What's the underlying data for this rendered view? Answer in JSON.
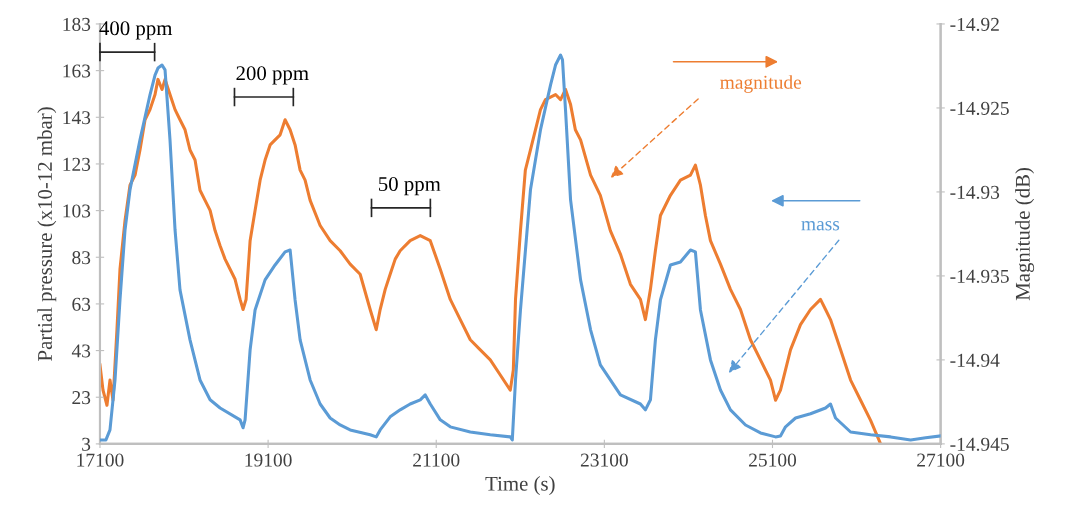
{
  "chart_data": {
    "type": "line",
    "xlabel": "Time (s)",
    "ylabel": "Partial pressure (x10-12 mbar)",
    "y2label": "Magnitude (dB)",
    "xlim": [
      17100,
      27100
    ],
    "xticks": [
      17100,
      19100,
      21100,
      23100,
      25100,
      27100
    ],
    "ylim": [
      3,
      183
    ],
    "yticks": [
      3,
      23,
      43,
      63,
      83,
      103,
      123,
      143,
      163,
      183
    ],
    "y2lim": [
      -14.945,
      -14.92
    ],
    "y2ticks": [
      -14.945,
      -14.94,
      -14.935,
      -14.93,
      -14.925,
      -14.92
    ],
    "grid": false,
    "legend": "top right",
    "marker": "none",
    "line_style": "solid",
    "series": [
      {
        "name": "mass",
        "color": "#5b9bd5",
        "x": [
          17100,
          17171,
          17219,
          17279,
          17338,
          17398,
          17457,
          17576,
          17695,
          17755,
          17790,
          17838,
          17874,
          17933,
          17993,
          18052,
          18171,
          18290,
          18410,
          18529,
          18767,
          18802,
          18826,
          18886,
          18945,
          19064,
          19183,
          19302,
          19362,
          19421,
          19481,
          19600,
          19719,
          19838,
          19957,
          20076,
          20314,
          20386,
          20433,
          20552,
          20671,
          20790,
          20910,
          20969,
          21029,
          21148,
          21267,
          21505,
          21743,
          21981,
          22005,
          22043,
          22102,
          22221,
          22340,
          22460,
          22519,
          22579,
          22602,
          22638,
          22698,
          22817,
          22936,
          23052,
          23291,
          23529,
          23588,
          23648,
          23707,
          23767,
          23886,
          24005,
          24124,
          24183,
          24243,
          24362,
          24481,
          24600,
          24779,
          24957,
          25136,
          25195,
          25255,
          25374,
          25552,
          25731,
          25790,
          25850,
          26029,
          26267,
          26505,
          26743,
          26922,
          27100
        ],
        "values": [
          4.7,
          4.7,
          9,
          30.4,
          64.7,
          94.7,
          111.9,
          133.3,
          152.6,
          161.1,
          164.1,
          165.4,
          163.3,
          133.3,
          94.7,
          69,
          47.6,
          30.4,
          21.9,
          18.4,
          13.3,
          9.9,
          13.3,
          43.3,
          60.4,
          73.3,
          79.7,
          85.3,
          86.1,
          64.7,
          47.6,
          30.4,
          20.1,
          14.1,
          11.1,
          9,
          6.9,
          6,
          9,
          14.6,
          17.6,
          20.1,
          21.9,
          24,
          20.1,
          13.3,
          10.3,
          8.1,
          6.9,
          6,
          4.7,
          30.4,
          60.4,
          111.9,
          137.6,
          156.9,
          165.4,
          169.7,
          167.6,
          146.1,
          107.6,
          73.3,
          51.9,
          36.9,
          24,
          20.1,
          17.6,
          21.9,
          47.6,
          64.7,
          79.7,
          81,
          86.1,
          85.3,
          60.4,
          39,
          26.1,
          17.6,
          11.1,
          7.7,
          6,
          6.4,
          10.3,
          14.1,
          15.9,
          18.4,
          20.1,
          14.1,
          8.1,
          6.9,
          6,
          4.7,
          5.6,
          6.4
        ]
      },
      {
        "name": "magnitude",
        "color": "#ed7d31",
        "axis": "y2",
        "x": [
          17100,
          17136,
          17183,
          17219,
          17255,
          17302,
          17338,
          17398,
          17457,
          17517,
          17576,
          17636,
          17695,
          17755,
          17790,
          17838,
          17874,
          17933,
          17993,
          18052,
          18112,
          18171,
          18231,
          18290,
          18350,
          18410,
          18469,
          18529,
          18588,
          18648,
          18707,
          18767,
          18802,
          18838,
          18886,
          18945,
          19005,
          19064,
          19124,
          19183,
          19243,
          19302,
          19362,
          19421,
          19481,
          19540,
          19600,
          19719,
          19838,
          19957,
          20076,
          20195,
          20314,
          20386,
          20433,
          20493,
          20552,
          20612,
          20671,
          20790,
          20910,
          21029,
          21148,
          21267,
          21386,
          21505,
          21624,
          21743,
          21862,
          21981,
          22017,
          22043,
          22102,
          22160,
          22221,
          22340,
          22400,
          22519,
          22579,
          22638,
          22698,
          22755,
          22817,
          22936,
          23052,
          23171,
          23291,
          23410,
          23529,
          23588,
          23648,
          23707,
          23767,
          23886,
          24005,
          24124,
          24183,
          24243,
          24302,
          24362,
          24481,
          24600,
          24719,
          24838,
          24957,
          25076,
          25136,
          25195,
          25314,
          25433,
          25552,
          25671,
          25731,
          25790,
          25910,
          26029,
          26148,
          26267,
          26386
        ],
        "values": [
          -14.9403,
          -14.9418,
          -14.9427,
          -14.9412,
          -14.9424,
          -14.9382,
          -14.9346,
          -14.9317,
          -14.9296,
          -14.929,
          -14.9275,
          -14.9257,
          -14.9251,
          -14.9242,
          -14.9233,
          -14.9239,
          -14.9233,
          -14.9242,
          -14.9251,
          -14.9257,
          -14.9263,
          -14.9275,
          -14.9281,
          -14.9299,
          -14.9305,
          -14.9311,
          -14.9323,
          -14.9332,
          -14.934,
          -14.9346,
          -14.9352,
          -14.9364,
          -14.937,
          -14.9364,
          -14.9329,
          -14.9311,
          -14.9293,
          -14.9281,
          -14.9272,
          -14.9269,
          -14.9266,
          -14.9257,
          -14.9263,
          -14.9272,
          -14.9287,
          -14.9293,
          -14.9305,
          -14.932,
          -14.9329,
          -14.9335,
          -14.9343,
          -14.9349,
          -14.937,
          -14.9382,
          -14.937,
          -14.9358,
          -14.9349,
          -14.934,
          -14.9335,
          -14.9329,
          -14.9326,
          -14.9329,
          -14.9346,
          -14.9364,
          -14.9376,
          -14.9388,
          -14.9394,
          -14.94,
          -14.9409,
          -14.9418,
          -14.9406,
          -14.9364,
          -14.9323,
          -14.9287,
          -14.9275,
          -14.9251,
          -14.9245,
          -14.9242,
          -14.9245,
          -14.9239,
          -14.9248,
          -14.9263,
          -14.9269,
          -14.929,
          -14.9302,
          -14.9323,
          -14.9337,
          -14.9355,
          -14.9364,
          -14.9376,
          -14.9358,
          -14.9335,
          -14.9314,
          -14.9302,
          -14.9293,
          -14.929,
          -14.9284,
          -14.9296,
          -14.9314,
          -14.9329,
          -14.9343,
          -14.9358,
          -14.937,
          -14.9388,
          -14.94,
          -14.9412,
          -14.9424,
          -14.9418,
          -14.9394,
          -14.9379,
          -14.937,
          -14.9364,
          -14.937,
          -14.9376,
          -14.9394,
          -14.9412,
          -14.9424,
          -14.9436,
          -14.945
        ]
      }
    ],
    "annotations": [
      "400 ppm",
      "200 ppm",
      "50 ppm"
    ]
  }
}
